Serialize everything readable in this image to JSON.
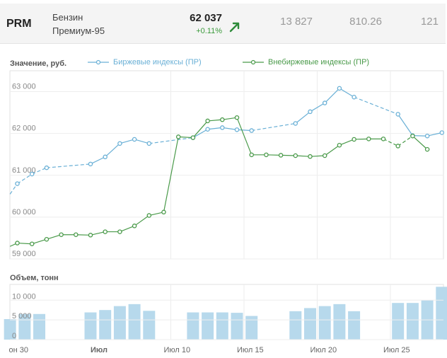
{
  "header": {
    "ticker": "PRM",
    "product_line1": "Бензин",
    "product_line2": "Премиум-95",
    "price": "62 037",
    "change": "+0.11%",
    "trend_icon": "arrow-up-right-icon",
    "stat1": "13 827",
    "stat2": "810.26",
    "stat3": "121"
  },
  "colors": {
    "exchange": "#6ab0d6",
    "otc": "#4a9a4a",
    "volume": "#b7d9ec",
    "up": "#2e8b3a"
  },
  "chart_data": [
    {
      "type": "line",
      "title": "Значение, руб.",
      "ylim": [
        59000,
        63500
      ],
      "ytick_labels": [
        "59 000",
        "60 000",
        "61 000",
        "62 000",
        "63 000"
      ],
      "ytick_values": [
        59000,
        60000,
        61000,
        62000,
        63000
      ],
      "x_labels": [
        {
          "label": "он 30",
          "day": 0,
          "bold": false
        },
        {
          "label": "Июл",
          "day": 5,
          "bold": true
        },
        {
          "label": "Июл 10",
          "day": 10,
          "bold": false
        },
        {
          "label": "Июл 15",
          "day": 15,
          "bold": false
        },
        {
          "label": "Июл 20",
          "day": 20,
          "bold": false
        },
        {
          "label": "Июл 25",
          "day": 25,
          "bold": false
        }
      ],
      "legend": "top-left",
      "series": [
        {
          "name": "Биржевые индексы (ПР)",
          "color": "#6ab0d6",
          "points": [
            {
              "x": -0.5,
              "y": 60550,
              "dash": true
            },
            {
              "x": 0,
              "y": 60800,
              "dash": true
            },
            {
              "x": 1,
              "y": 61030,
              "dash": true
            },
            {
              "x": 2,
              "y": 61180,
              "dash": true
            },
            {
              "x": 5,
              "y": 61270,
              "dash": false
            },
            {
              "x": 6,
              "y": 61440,
              "dash": false
            },
            {
              "x": 7,
              "y": 61760,
              "dash": false
            },
            {
              "x": 8,
              "y": 61860,
              "dash": false
            },
            {
              "x": 9,
              "y": 61760,
              "dash": true
            },
            {
              "x": 12,
              "y": 61900,
              "dash": false
            },
            {
              "x": 13,
              "y": 62100,
              "dash": false
            },
            {
              "x": 14,
              "y": 62140,
              "dash": false
            },
            {
              "x": 15,
              "y": 62090,
              "dash": false
            },
            {
              "x": 16,
              "y": 62070,
              "dash": true
            },
            {
              "x": 19,
              "y": 62240,
              "dash": false
            },
            {
              "x": 20,
              "y": 62520,
              "dash": false
            },
            {
              "x": 21,
              "y": 62730,
              "dash": false
            },
            {
              "x": 22,
              "y": 63080,
              "dash": false
            },
            {
              "x": 23,
              "y": 62870,
              "dash": true
            },
            {
              "x": 26,
              "y": 62460,
              "dash": false
            },
            {
              "x": 27,
              "y": 61950,
              "dash": false
            },
            {
              "x": 28,
              "y": 61940,
              "dash": false
            },
            {
              "x": 29,
              "y": 62020,
              "dash": false
            }
          ]
        },
        {
          "name": "Внебиржевые индексы (ПР)",
          "color": "#4a9a4a",
          "points": [
            {
              "x": -0.5,
              "y": 59300,
              "dash": false
            },
            {
              "x": 0,
              "y": 59380,
              "dash": false
            },
            {
              "x": 1,
              "y": 59360,
              "dash": false
            },
            {
              "x": 2,
              "y": 59470,
              "dash": false
            },
            {
              "x": 3,
              "y": 59580,
              "dash": false
            },
            {
              "x": 4,
              "y": 59580,
              "dash": false
            },
            {
              "x": 5,
              "y": 59570,
              "dash": false
            },
            {
              "x": 6,
              "y": 59650,
              "dash": false
            },
            {
              "x": 7,
              "y": 59650,
              "dash": false
            },
            {
              "x": 8,
              "y": 59790,
              "dash": false
            },
            {
              "x": 9,
              "y": 60040,
              "dash": false
            },
            {
              "x": 10,
              "y": 60120,
              "dash": false
            },
            {
              "x": 11,
              "y": 61920,
              "dash": false
            },
            {
              "x": 12,
              "y": 61900,
              "dash": false
            },
            {
              "x": 13,
              "y": 62300,
              "dash": false
            },
            {
              "x": 14,
              "y": 62330,
              "dash": false
            },
            {
              "x": 15,
              "y": 62380,
              "dash": false
            },
            {
              "x": 16,
              "y": 61490,
              "dash": false
            },
            {
              "x": 17,
              "y": 61490,
              "dash": false
            },
            {
              "x": 18,
              "y": 61480,
              "dash": false
            },
            {
              "x": 19,
              "y": 61470,
              "dash": false
            },
            {
              "x": 20,
              "y": 61450,
              "dash": false
            },
            {
              "x": 21,
              "y": 61470,
              "dash": false
            },
            {
              "x": 22,
              "y": 61720,
              "dash": false
            },
            {
              "x": 23,
              "y": 61860,
              "dash": false
            },
            {
              "x": 24,
              "y": 61870,
              "dash": false
            },
            {
              "x": 25,
              "y": 61870,
              "dash": true
            },
            {
              "x": 26,
              "y": 61700,
              "dash": true
            },
            {
              "x": 27,
              "y": 61940,
              "dash": false
            },
            {
              "x": 28,
              "y": 61620,
              "dash": false
            }
          ]
        }
      ]
    },
    {
      "type": "bar",
      "title": "Объем, тонн",
      "ylim": [
        0,
        14000
      ],
      "ytick_labels": [
        "0",
        "5 000",
        "10 000"
      ],
      "ytick_values": [
        0,
        5000,
        10000
      ],
      "bars": [
        {
          "x": -0.5,
          "value": 5200
        },
        {
          "x": 0.5,
          "value": 6500
        },
        {
          "x": 1.5,
          "value": 6500
        },
        {
          "x": 5,
          "value": 6900
        },
        {
          "x": 6,
          "value": 7500
        },
        {
          "x": 7,
          "value": 8500
        },
        {
          "x": 8,
          "value": 9000
        },
        {
          "x": 9,
          "value": 7300
        },
        {
          "x": 12,
          "value": 6900
        },
        {
          "x": 13,
          "value": 6900
        },
        {
          "x": 14,
          "value": 6900
        },
        {
          "x": 15,
          "value": 6800
        },
        {
          "x": 16,
          "value": 6000
        },
        {
          "x": 19,
          "value": 7200
        },
        {
          "x": 20,
          "value": 8000
        },
        {
          "x": 21,
          "value": 8500
        },
        {
          "x": 22,
          "value": 9000
        },
        {
          "x": 23,
          "value": 7200
        },
        {
          "x": 26,
          "value": 9300
        },
        {
          "x": 27,
          "value": 9300
        },
        {
          "x": 28,
          "value": 10000
        },
        {
          "x": 29,
          "value": 13400
        }
      ]
    }
  ]
}
